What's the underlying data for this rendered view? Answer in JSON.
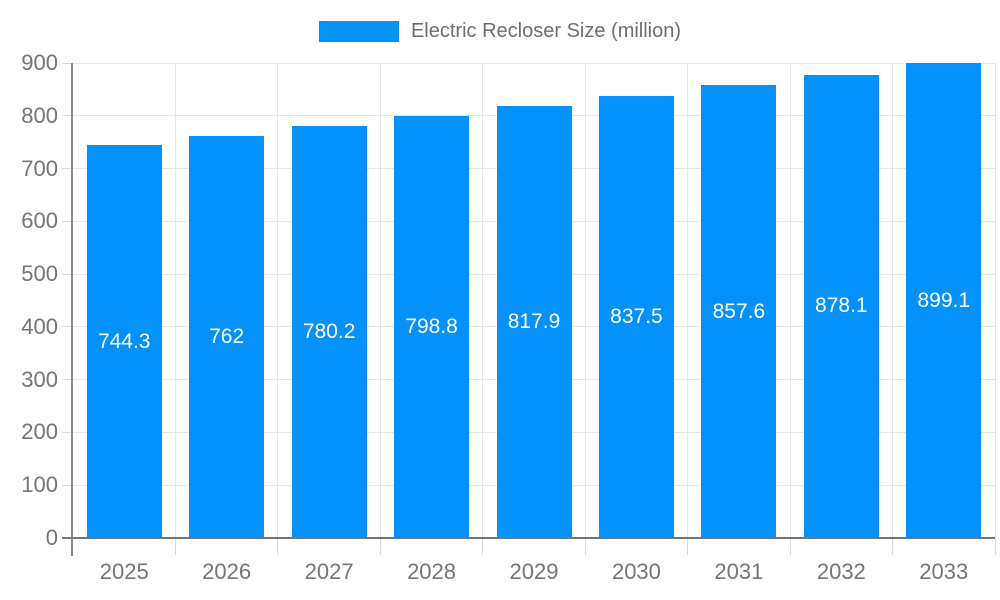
{
  "chart_data": {
    "type": "bar",
    "title": "Electric Recloser Size (million)",
    "legend": {
      "position": "top",
      "label": "Electric Recloser Size (million)"
    },
    "categories": [
      "2025",
      "2026",
      "2027",
      "2028",
      "2029",
      "2030",
      "2031",
      "2032",
      "2033"
    ],
    "values": [
      744.3,
      762,
      780.2,
      798.8,
      817.9,
      837.5,
      857.6,
      878.1,
      899.1
    ],
    "value_labels": [
      "744.3",
      "762",
      "780.2",
      "798.8",
      "817.9",
      "837.5",
      "857.6",
      "878.1",
      "899.1"
    ],
    "xlabel": "",
    "ylabel": "",
    "ylim": [
      0,
      900
    ],
    "ytick_step": 100,
    "ytick_labels": [
      "0",
      "100",
      "200",
      "300",
      "400",
      "500",
      "600",
      "700",
      "800",
      "900"
    ],
    "grid": true,
    "colors": {
      "bar": "#0591fa",
      "value_label": "#ffffff",
      "tick_label": "#757575",
      "legend_text": "#6e6e6e",
      "gridline": "#e6e6e6",
      "axis_line": "#757575"
    }
  }
}
